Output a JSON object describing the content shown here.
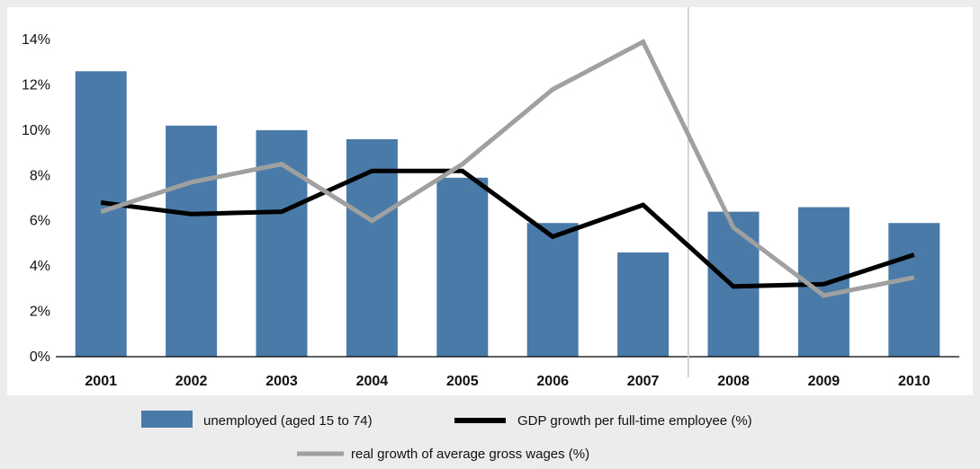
{
  "chart_data": {
    "type": "bar",
    "title": "",
    "xlabel": "",
    "ylabel": "",
    "categories": [
      "2001",
      "2002",
      "2003",
      "2004",
      "2005",
      "2006",
      "2007",
      "2008",
      "2009",
      "2010"
    ],
    "ylim": [
      0,
      14
    ],
    "y_ticks": [
      "0%",
      "2%",
      "4%",
      "6%",
      "8%",
      "10%",
      "12%",
      "14%"
    ],
    "grid": false,
    "legend_position": "bottom",
    "divider_after_category": "2007",
    "series": [
      {
        "name": "unemployed (aged 15 to 74)",
        "type": "bar",
        "color": "#4a7aa8",
        "values": [
          12.6,
          10.2,
          10.0,
          9.6,
          7.9,
          5.9,
          4.6,
          6.4,
          6.6,
          5.9
        ]
      },
      {
        "name": "GDP growth per full-time employee (%)",
        "type": "line",
        "color": "#000000",
        "values": [
          6.8,
          6.3,
          6.4,
          8.2,
          8.2,
          5.3,
          6.7,
          3.1,
          3.2,
          4.5
        ]
      },
      {
        "name": "real growth of average gross wages (%)",
        "type": "line",
        "color": "#a0a0a0",
        "values": [
          6.4,
          7.7,
          8.5,
          6.0,
          8.5,
          11.8,
          13.9,
          5.7,
          2.7,
          3.5
        ]
      }
    ]
  },
  "colors": {
    "background": "#ececec",
    "plot_background": "#ffffff",
    "axis": "#000000"
  }
}
